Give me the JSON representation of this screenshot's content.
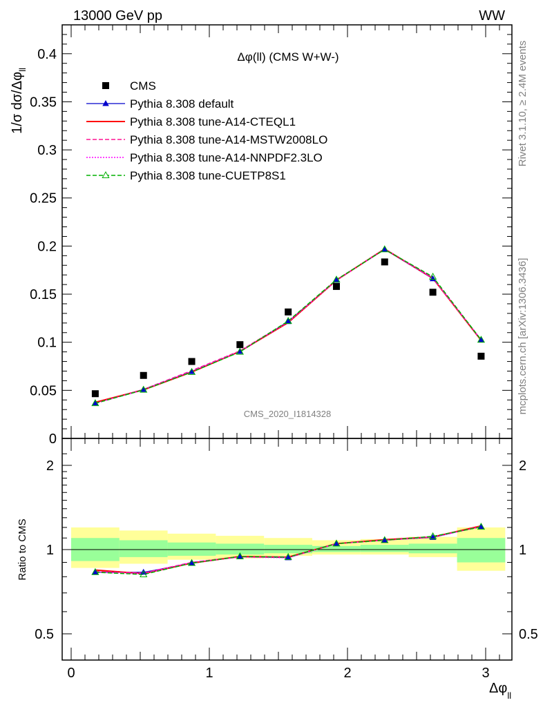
{
  "header": {
    "left": "13000 GeV pp",
    "right": "WW"
  },
  "side_labels": {
    "rivet": "Rivet 3.1.10, ≥ 2.4M events",
    "mcplots": "mcplots.cern.ch [arXiv:1306.3436]"
  },
  "chart_data": [
    {
      "type": "line",
      "title": "Δφ(ll) (CMS W+W-)",
      "watermark": "CMS_2020_I1814328",
      "ylabel": "1/σ dσ/Δφ_ll",
      "xlabel": "Δφ_ll",
      "xlim": [
        -0.1,
        3.1416
      ],
      "ylim": [
        0,
        0.43
      ],
      "yticks": [
        0,
        0.05,
        0.1,
        0.15,
        0.2,
        0.25,
        0.3,
        0.35,
        0.4
      ],
      "ytick_labels": [
        "0",
        "0.05",
        "0.1",
        "0.15",
        "0.2",
        "0.25",
        "0.3",
        "0.35",
        "0.4"
      ],
      "legend_position": "top-left",
      "x": [
        0.1745,
        0.5236,
        0.8727,
        1.2217,
        1.5708,
        1.9199,
        2.2689,
        2.618,
        2.9671
      ],
      "data": {
        "name": "CMS",
        "values": [
          0.0465,
          0.0655,
          0.08,
          0.0975,
          0.1315,
          0.158,
          0.1835,
          0.152,
          0.0855
        ]
      },
      "series": [
        {
          "name": "Pythia 8.308 default",
          "color": "#0000cc",
          "style": "solid-triangle",
          "values": [
            0.037,
            0.051,
            0.0695,
            0.0905,
            0.1215,
            0.1645,
            0.1965,
            0.166,
            0.1025
          ]
        },
        {
          "name": "Pythia 8.308 tune-A14-CTEQL1",
          "color": "#ff0000",
          "style": "solid",
          "values": [
            0.0375,
            0.0505,
            0.069,
            0.0905,
            0.1205,
            0.1645,
            0.197,
            0.1665,
            0.102
          ]
        },
        {
          "name": "Pythia 8.308 tune-A14-MSTW2008LO",
          "color": "#ff1493",
          "style": "dashed",
          "values": [
            0.0365,
            0.051,
            0.0705,
            0.091,
            0.1215,
            0.165,
            0.1965,
            0.1665,
            0.1025
          ]
        },
        {
          "name": "Pythia 8.308 tune-A14-NNPDF2.3LO",
          "color": "#ff00ff",
          "style": "dotted",
          "values": [
            0.0365,
            0.0505,
            0.07,
            0.0905,
            0.121,
            0.1645,
            0.197,
            0.167,
            0.1025
          ]
        },
        {
          "name": "Pythia 8.308 tune-CUETP8S1",
          "color": "#00b000",
          "style": "dashed-open-triangle",
          "values": [
            0.0365,
            0.0505,
            0.069,
            0.09,
            0.122,
            0.165,
            0.1965,
            0.168,
            0.1025
          ]
        }
      ]
    },
    {
      "type": "line",
      "ylabel": "Ratio to CMS",
      "xlabel": "Δφ_ll",
      "ylim": [
        0.4,
        2.4
      ],
      "yscale": "log",
      "yticks": [
        0.5,
        1,
        2
      ],
      "ytick_labels": [
        "0.5",
        "1",
        "2"
      ],
      "xticks": [
        0,
        1,
        2,
        3
      ],
      "xtick_labels": [
        "0",
        "1",
        "2",
        "3"
      ],
      "reference_line": 1,
      "bin_edges": [
        0,
        0.349,
        0.698,
        1.047,
        1.396,
        1.745,
        2.094,
        2.443,
        2.793,
        3.1416
      ],
      "band_inner": [
        [
          0.91,
          1.1
        ],
        [
          0.94,
          1.08
        ],
        [
          0.95,
          1.06
        ],
        [
          0.96,
          1.05
        ],
        [
          0.97,
          1.04
        ],
        [
          0.98,
          1.03
        ],
        [
          0.98,
          1.04
        ],
        [
          0.97,
          1.05
        ],
        [
          0.9,
          1.1
        ]
      ],
      "band_outer": [
        [
          0.86,
          1.2
        ],
        [
          0.89,
          1.17
        ],
        [
          0.92,
          1.14
        ],
        [
          0.93,
          1.12
        ],
        [
          0.95,
          1.1
        ],
        [
          0.96,
          1.08
        ],
        [
          0.96,
          1.09
        ],
        [
          0.94,
          1.11
        ],
        [
          0.84,
          1.2
        ]
      ],
      "series": [
        {
          "name": "Pythia 8.308 default",
          "values": [
            0.83,
            0.83,
            0.893,
            0.943,
            0.935,
            1.05,
            1.08,
            1.105,
            1.21
          ]
        },
        {
          "name": "Pythia 8.308 tune-A14-CTEQL1",
          "values": [
            0.845,
            0.82,
            0.895,
            0.945,
            0.94,
            1.05,
            1.085,
            1.11,
            1.215
          ]
        },
        {
          "name": "Pythia 8.308 tune-A14-MSTW2008LO",
          "values": [
            0.835,
            0.825,
            0.9,
            0.945,
            0.94,
            1.05,
            1.08,
            1.11,
            1.21
          ]
        },
        {
          "name": "Pythia 8.308 tune-A14-NNPDF2.3LO",
          "values": [
            0.83,
            0.82,
            0.9,
            0.94,
            0.935,
            1.05,
            1.08,
            1.11,
            1.205
          ]
        },
        {
          "name": "Pythia 8.308 tune-CUETP8S1",
          "values": [
            0.83,
            0.815,
            0.895,
            0.945,
            0.94,
            1.05,
            1.08,
            1.115,
            1.205
          ]
        }
      ]
    }
  ]
}
